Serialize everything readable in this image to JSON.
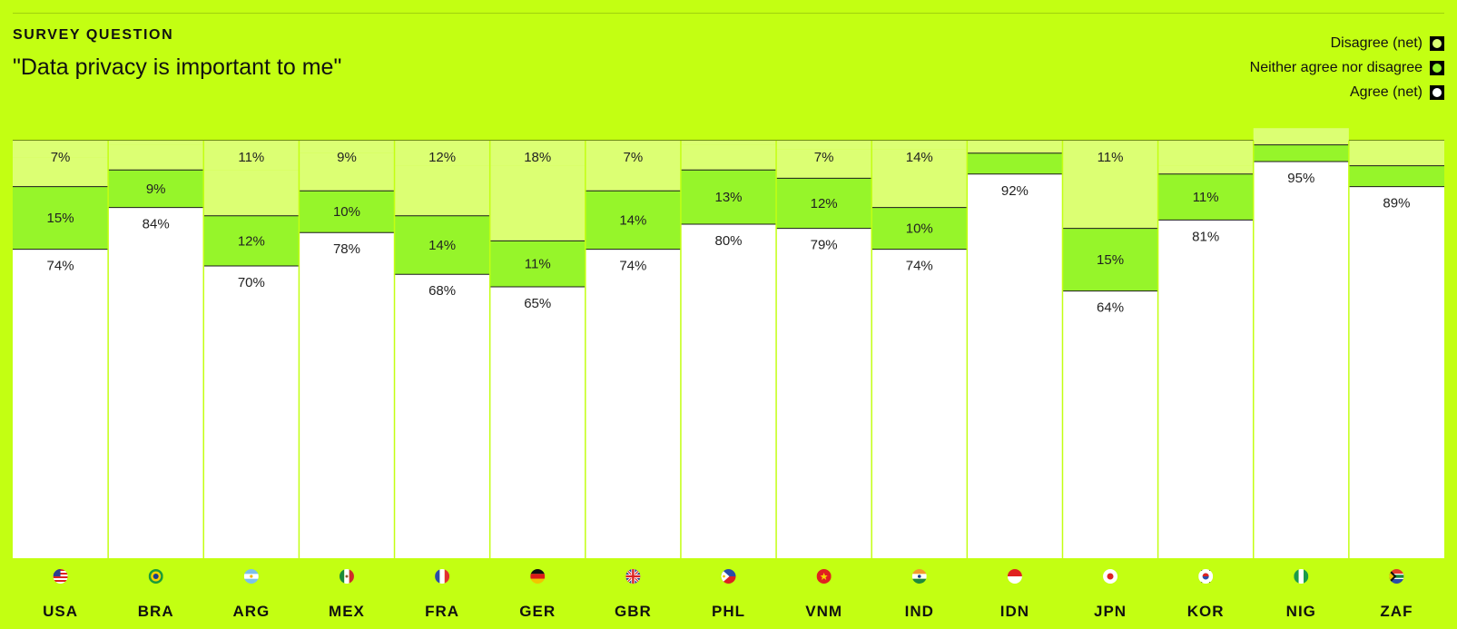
{
  "header": {
    "eyebrow": "SURVEY QUESTION",
    "question": "\"Data privacy is important to me\""
  },
  "legend": [
    {
      "label": "Disagree (net)",
      "color": "#dcff73"
    },
    {
      "label": "Neither agree nor disagree",
      "color": "#96f52a"
    },
    {
      "label": "Agree (net)",
      "color": "#ffffff"
    }
  ],
  "colors": {
    "background": "#c3ff12",
    "agree": "#ffffff",
    "neither": "#96f52a",
    "disagree": "#dcff73"
  },
  "chart_data": {
    "type": "bar",
    "stacked": true,
    "categories": [
      "USA",
      "BRA",
      "ARG",
      "MEX",
      "FRA",
      "GER",
      "GBR",
      "PHL",
      "VNM",
      "IND",
      "IDN",
      "JPN",
      "KOR",
      "NIG",
      "ZAF"
    ],
    "flag_icons": [
      "us-flag-icon",
      "br-flag-icon",
      "ar-flag-icon",
      "mx-flag-icon",
      "fr-flag-icon",
      "de-flag-icon",
      "gb-flag-icon",
      "ph-flag-icon",
      "vn-flag-icon",
      "in-flag-icon",
      "id-flag-icon",
      "jp-flag-icon",
      "kr-flag-icon",
      "ng-flag-icon",
      "za-flag-icon"
    ],
    "series": [
      {
        "name": "Agree (net)",
        "values": [
          74,
          84,
          70,
          78,
          68,
          65,
          74,
          80,
          79,
          74,
          92,
          64,
          81,
          95,
          89
        ],
        "labels": [
          "74%",
          "84%",
          "70%",
          "78%",
          "68%",
          "65%",
          "74%",
          "80%",
          "79%",
          "74%",
          "92%",
          "64%",
          "81%",
          "95%",
          "89%"
        ]
      },
      {
        "name": "Neither agree nor disagree",
        "values": [
          15,
          9,
          12,
          10,
          14,
          11,
          14,
          13,
          12,
          10,
          5,
          15,
          11,
          4,
          5
        ],
        "labels": [
          "15%",
          "9%",
          "12%",
          "10%",
          "14%",
          "11%",
          "14%",
          "13%",
          "12%",
          "10%",
          "",
          "15%",
          "11%",
          "",
          ""
        ]
      },
      {
        "name": "Disagree (net)",
        "values": [
          7,
          6,
          11,
          9,
          12,
          18,
          7,
          6,
          7,
          14,
          3,
          11,
          2,
          4,
          6
        ],
        "labels": [
          "7%",
          "",
          "11%",
          "9%",
          "12%",
          "18%",
          "7%",
          "",
          "7%",
          "14%",
          "",
          "11%",
          "",
          "",
          ""
        ]
      }
    ],
    "ylim": [
      0,
      100
    ]
  }
}
